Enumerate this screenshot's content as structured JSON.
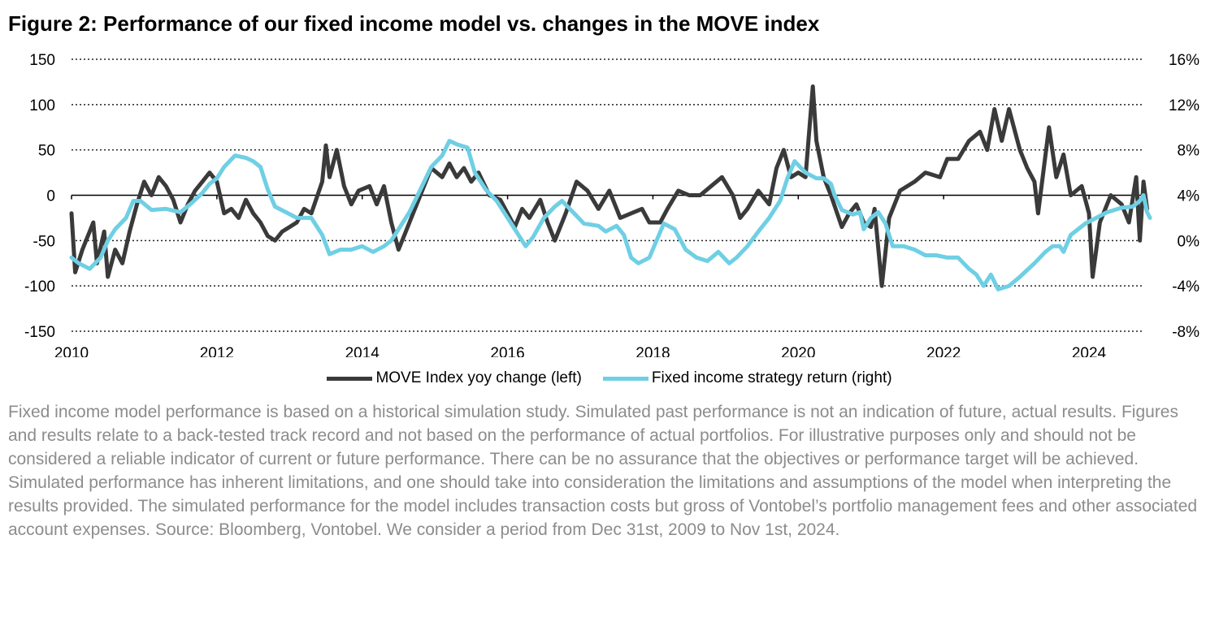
{
  "title": "Figure 2: Performance of our fixed income model vs. changes in the MOVE index",
  "chart_data": {
    "type": "line",
    "title": "Figure 2: Performance of our fixed income model vs. changes in the MOVE index",
    "x_ticks": [
      "2010",
      "2012",
      "2014",
      "2016",
      "2018",
      "2020",
      "2022",
      "2024"
    ],
    "xlim": [
      2010,
      2024.84
    ],
    "left_axis": {
      "ylim": [
        -150,
        150
      ],
      "ticks": [
        "150",
        "100",
        "50",
        "0",
        "-50",
        "-100",
        "-150"
      ]
    },
    "right_axis": {
      "ylim": [
        -8,
        16
      ],
      "ticks": [
        "16%",
        "12%",
        "8%",
        "4%",
        "0%",
        "-4%",
        "-8%"
      ]
    },
    "grid": true,
    "legend_position": "bottom",
    "colors": {
      "move": "#393a39",
      "strategy": "#6fcfe4"
    },
    "series": [
      {
        "name": "MOVE Index yoy change (left)",
        "axis": "left",
        "x": [
          2010.0,
          2010.05,
          2010.15,
          2010.3,
          2010.35,
          2010.45,
          2010.5,
          2010.6,
          2010.7,
          2010.8,
          2010.9,
          2011.0,
          2011.1,
          2011.2,
          2011.3,
          2011.4,
          2011.5,
          2011.6,
          2011.7,
          2011.8,
          2011.9,
          2012.0,
          2012.1,
          2012.2,
          2012.3,
          2012.4,
          2012.5,
          2012.6,
          2012.7,
          2012.8,
          2012.9,
          2013.0,
          2013.1,
          2013.2,
          2013.3,
          2013.45,
          2013.5,
          2013.55,
          2013.65,
          2013.75,
          2013.85,
          2013.95,
          2014.1,
          2014.2,
          2014.3,
          2014.4,
          2014.5,
          2014.6,
          2014.7,
          2014.8,
          2014.95,
          2015.1,
          2015.2,
          2015.3,
          2015.4,
          2015.5,
          2015.6,
          2015.75,
          2015.9,
          2016.0,
          2016.1,
          2016.2,
          2016.3,
          2016.45,
          2016.55,
          2016.65,
          2016.8,
          2016.95,
          2017.1,
          2017.25,
          2017.4,
          2017.55,
          2017.7,
          2017.85,
          2017.95,
          2018.1,
          2018.2,
          2018.35,
          2018.5,
          2018.65,
          2018.8,
          2018.95,
          2019.1,
          2019.2,
          2019.3,
          2019.45,
          2019.6,
          2019.7,
          2019.8,
          2019.9,
          2020.0,
          2020.1,
          2020.2,
          2020.25,
          2020.35,
          2020.45,
          2020.6,
          2020.7,
          2020.8,
          2020.9,
          2021.0,
          2021.05,
          2021.15,
          2021.25,
          2021.4,
          2021.6,
          2021.75,
          2021.95,
          2022.05,
          2022.2,
          2022.35,
          2022.5,
          2022.6,
          2022.7,
          2022.8,
          2022.9,
          2023.05,
          2023.15,
          2023.25,
          2023.3,
          2023.45,
          2023.55,
          2023.65,
          2023.75,
          2023.9,
          2024.0,
          2024.05,
          2024.15,
          2024.3,
          2024.45,
          2024.55,
          2024.65,
          2024.7,
          2024.75,
          2024.8
        ],
        "y": [
          -20,
          -85,
          -60,
          -30,
          -75,
          -40,
          -90,
          -60,
          -75,
          -40,
          -10,
          15,
          0,
          20,
          10,
          -5,
          -30,
          -10,
          5,
          15,
          25,
          15,
          -20,
          -15,
          -25,
          -5,
          -20,
          -30,
          -45,
          -50,
          -40,
          -35,
          -30,
          -15,
          -20,
          15,
          55,
          20,
          50,
          10,
          -10,
          5,
          10,
          -10,
          10,
          -30,
          -60,
          -40,
          -20,
          0,
          30,
          20,
          35,
          20,
          30,
          15,
          25,
          0,
          -5,
          -20,
          -35,
          -15,
          -25,
          -5,
          -30,
          -50,
          -20,
          15,
          5,
          -15,
          5,
          -25,
          -20,
          -15,
          -30,
          -30,
          -15,
          5,
          0,
          0,
          10,
          20,
          0,
          -25,
          -15,
          5,
          -10,
          30,
          50,
          20,
          25,
          20,
          120,
          60,
          20,
          0,
          -35,
          -20,
          -10,
          -30,
          -35,
          -15,
          -100,
          -25,
          5,
          15,
          25,
          20,
          40,
          40,
          60,
          70,
          50,
          95,
          60,
          95,
          50,
          30,
          15,
          -20,
          75,
          20,
          45,
          0,
          10,
          -20,
          -90,
          -30,
          0,
          -10,
          -30,
          20,
          -50,
          15,
          -15
        ]
      },
      {
        "name": "Fixed income strategy return (right)",
        "axis": "right",
        "x": [
          2010.0,
          2010.1,
          2010.25,
          2010.4,
          2010.5,
          2010.6,
          2010.75,
          2010.85,
          2010.95,
          2011.1,
          2011.3,
          2011.5,
          2011.65,
          2011.8,
          2011.9,
          2012.0,
          2012.1,
          2012.25,
          2012.4,
          2012.5,
          2012.6,
          2012.7,
          2012.8,
          2012.95,
          2013.1,
          2013.3,
          2013.45,
          2013.55,
          2013.7,
          2013.85,
          2014.0,
          2014.15,
          2014.3,
          2014.4,
          2014.5,
          2014.65,
          2014.8,
          2014.95,
          2015.1,
          2015.2,
          2015.3,
          2015.45,
          2015.55,
          2015.7,
          2015.85,
          2016.0,
          2016.15,
          2016.25,
          2016.35,
          2016.5,
          2016.65,
          2016.75,
          2016.9,
          2017.05,
          2017.25,
          2017.35,
          2017.5,
          2017.6,
          2017.7,
          2017.8,
          2017.95,
          2018.05,
          2018.15,
          2018.3,
          2018.45,
          2018.6,
          2018.75,
          2018.9,
          2019.05,
          2019.15,
          2019.3,
          2019.45,
          2019.6,
          2019.75,
          2019.85,
          2019.95,
          2020.1,
          2020.25,
          2020.35,
          2020.45,
          2020.5,
          2020.6,
          2020.75,
          2020.85,
          2020.9,
          2021.0,
          2021.1,
          2021.2,
          2021.3,
          2021.45,
          2021.6,
          2021.75,
          2021.9,
          2022.05,
          2022.2,
          2022.35,
          2022.45,
          2022.55,
          2022.65,
          2022.75,
          2022.9,
          2023.05,
          2023.25,
          2023.4,
          2023.5,
          2023.6,
          2023.65,
          2023.75,
          2023.85,
          2023.95,
          2024.1,
          2024.25,
          2024.45,
          2024.6,
          2024.7,
          2024.75,
          2024.8,
          2024.84
        ],
        "y": [
          -1.5,
          -2.0,
          -2.5,
          -1.5,
          0,
          1.0,
          2.0,
          3.5,
          3.5,
          2.7,
          2.8,
          2.5,
          3.3,
          4.2,
          5.0,
          5.5,
          6.5,
          7.5,
          7.3,
          7.0,
          6.5,
          4.5,
          3.0,
          2.5,
          2.0,
          2.0,
          0.5,
          -1.2,
          -0.8,
          -0.8,
          -0.5,
          -1.0,
          -0.5,
          0,
          1.0,
          2.5,
          4.5,
          6.5,
          7.5,
          8.8,
          8.5,
          8.2,
          6.0,
          4.5,
          3.5,
          2.0,
          0.5,
          -0.5,
          0.3,
          2.0,
          3.0,
          3.5,
          2.5,
          1.5,
          1.3,
          0.8,
          1.3,
          0.5,
          -1.5,
          -2.0,
          -1.5,
          0,
          1.5,
          1.0,
          -0.8,
          -1.5,
          -1.8,
          -1.0,
          -2.0,
          -1.5,
          -0.5,
          0.8,
          2.0,
          3.5,
          5.5,
          7.0,
          6.0,
          5.5,
          5.5,
          5.0,
          4.0,
          2.7,
          2.3,
          2.5,
          1.0,
          2.0,
          2.5,
          1.5,
          -0.5,
          -0.5,
          -0.8,
          -1.3,
          -1.3,
          -1.5,
          -1.5,
          -2.5,
          -3.0,
          -4.0,
          -3.0,
          -4.3,
          -4.0,
          -3.2,
          -2.0,
          -1.0,
          -0.5,
          -0.5,
          -1.0,
          0.5,
          1.0,
          1.5,
          2.0,
          2.5,
          2.9,
          3.0,
          3.5,
          4.0,
          2.5,
          2.0
        ]
      }
    ]
  },
  "legend": {
    "move": "MOVE Index yoy change (left)",
    "strategy": "Fixed income strategy return (right)"
  },
  "footnote": "Fixed income model performance is based on a historical simulation study. Simulated past performance is not an indication of future, actual results. Figures and results relate to a back-tested track record and not based on the performance of actual portfolios. For illustrative purposes only and should not be considered a reliable indicator of current or future performance. There can be no assurance that the objectives or performance target will be achieved. Simulated performance has inherent limitations, and one should take into consideration the limitations and assumptions of the model when interpreting the results provided. The simulated performance for the model includes transaction costs but gross of Vontobel’s portfolio management fees and other associated account expenses. Source: Bloomberg, Vontobel. We consider a period from Dec 31st, 2009 to Nov 1st, 2024."
}
